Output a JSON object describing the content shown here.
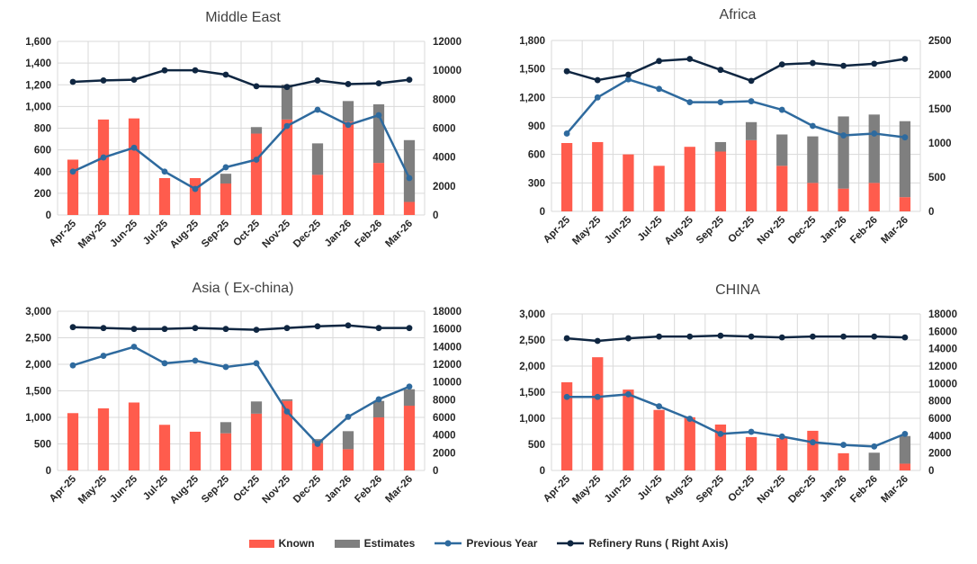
{
  "colors": {
    "known": "#FF5C4D",
    "estimates": "#7F7F7F",
    "previous_year": "#2E6A9E",
    "refinery_runs": "#0F2641"
  },
  "legend": {
    "known": "Known",
    "estimates": "Estimates",
    "previous_year": "Previous Year",
    "refinery_runs": "Refinery Runs ( Right Axis)"
  },
  "chart_data": [
    {
      "type": "bar",
      "title": "Middle East",
      "categories": [
        "Apr-25",
        "May-25",
        "Jun-25",
        "Jul-25",
        "Aug-25",
        "Sep-25",
        "Oct-25",
        "Nov-25",
        "Dec-25",
        "Jan-26",
        "Feb-26",
        "Mar-26"
      ],
      "ylim": [
        0,
        1600
      ],
      "yticks": [
        0,
        200,
        400,
        600,
        800,
        1000,
        1200,
        1400,
        1600
      ],
      "yticklabels": [
        "0",
        "200",
        "400",
        "600",
        "800",
        "1,000",
        "1,200",
        "1,400",
        "1,600"
      ],
      "y2lim": [
        0,
        12000
      ],
      "y2ticks": [
        0,
        2000,
        4000,
        6000,
        8000,
        10000,
        12000
      ],
      "y2ticklabels": [
        "0",
        "2000",
        "4000",
        "6000",
        "8000",
        "10000",
        "12000"
      ],
      "series": [
        {
          "name": "Known",
          "kind": "bar",
          "values": [
            510,
            880,
            890,
            340,
            340,
            290,
            750,
            880,
            370,
            860,
            480,
            120
          ]
        },
        {
          "name": "Estimates",
          "kind": "bar",
          "values": [
            0,
            0,
            0,
            0,
            0,
            90,
            60,
            320,
            290,
            190,
            540,
            570
          ]
        },
        {
          "name": "Previous Year",
          "kind": "line",
          "axis": "left",
          "values": [
            400,
            530,
            620,
            400,
            240,
            440,
            510,
            820,
            970,
            830,
            920,
            340
          ]
        },
        {
          "name": "Refinery Runs ( Right Axis)",
          "kind": "line",
          "axis": "right",
          "values": [
            9200,
            9300,
            9350,
            10000,
            10000,
            9700,
            8900,
            8850,
            9300,
            9050,
            9100,
            9350
          ]
        }
      ]
    },
    {
      "type": "bar",
      "title": "Africa",
      "categories": [
        "Apr-25",
        "May-25",
        "Jun-25",
        "Jul-25",
        "Aug-25",
        "Sep-25",
        "Oct-25",
        "Nov-25",
        "Dec-25",
        "Jan-26",
        "Feb-26",
        "Mar-26"
      ],
      "ylim": [
        0,
        1800
      ],
      "yticks": [
        0,
        300,
        600,
        900,
        1200,
        1500,
        1800
      ],
      "yticklabels": [
        "0",
        "300",
        "600",
        "900",
        "1,200",
        "1,500",
        "1,800"
      ],
      "y2lim": [
        0,
        2500
      ],
      "y2ticks": [
        0,
        500,
        1000,
        1500,
        2000,
        2500
      ],
      "y2ticklabels": [
        "0",
        "500",
        "1000",
        "1500",
        "2000",
        "2500"
      ],
      "series": [
        {
          "name": "Known",
          "kind": "bar",
          "values": [
            720,
            730,
            600,
            480,
            680,
            630,
            750,
            480,
            300,
            240,
            300,
            150
          ]
        },
        {
          "name": "Estimates",
          "kind": "bar",
          "values": [
            0,
            0,
            0,
            0,
            0,
            100,
            190,
            330,
            490,
            760,
            720,
            800
          ]
        },
        {
          "name": "Previous Year",
          "kind": "line",
          "axis": "left",
          "values": [
            820,
            1200,
            1390,
            1290,
            1150,
            1150,
            1160,
            1070,
            900,
            800,
            820,
            780
          ]
        },
        {
          "name": "Refinery Runs ( Right Axis)",
          "kind": "line",
          "axis": "right",
          "values": [
            2050,
            1920,
            2000,
            2200,
            2230,
            2070,
            1910,
            2150,
            2170,
            2130,
            2160,
            2230
          ]
        }
      ]
    },
    {
      "type": "bar",
      "title": "Asia ( Ex-china)",
      "categories": [
        "Apr-25",
        "May-25",
        "Jun-25",
        "Jul-25",
        "Aug-25",
        "Sep-25",
        "Oct-25",
        "Nov-25",
        "Dec-25",
        "Jan-26",
        "Feb-26",
        "Mar-26"
      ],
      "ylim": [
        0,
        3000
      ],
      "yticks": [
        0,
        500,
        1000,
        1500,
        2000,
        2500,
        3000
      ],
      "yticklabels": [
        "0",
        "500",
        "1,000",
        "1,500",
        "2,000",
        "2,500",
        "3,000"
      ],
      "y2lim": [
        0,
        18000
      ],
      "y2ticks": [
        0,
        2000,
        4000,
        6000,
        8000,
        10000,
        12000,
        14000,
        16000,
        18000
      ],
      "y2ticklabels": [
        "0",
        "2000",
        "4000",
        "6000",
        "8000",
        "10000",
        "12000",
        "14000",
        "16000",
        "18000"
      ],
      "series": [
        {
          "name": "Known",
          "kind": "bar",
          "values": [
            1080,
            1170,
            1280,
            860,
            730,
            700,
            1070,
            1310,
            510,
            400,
            1000,
            1220
          ]
        },
        {
          "name": "Estimates",
          "kind": "bar",
          "values": [
            0,
            0,
            0,
            0,
            0,
            210,
            230,
            30,
            80,
            340,
            310,
            310
          ]
        },
        {
          "name": "Previous Year",
          "kind": "line",
          "axis": "left",
          "values": [
            1980,
            2160,
            2330,
            2020,
            2070,
            1950,
            2020,
            1110,
            500,
            1010,
            1340,
            1580
          ]
        },
        {
          "name": "Refinery Runs ( Right Axis)",
          "kind": "line",
          "axis": "right",
          "values": [
            16200,
            16100,
            16000,
            16000,
            16100,
            16000,
            15900,
            16100,
            16300,
            16400,
            16100,
            16100
          ]
        }
      ]
    },
    {
      "type": "bar",
      "title": "CHINA",
      "categories": [
        "Apr-25",
        "May-25",
        "Jun-25",
        "Jul-25",
        "Aug-25",
        "Sep-25",
        "Oct-25",
        "Nov-25",
        "Dec-25",
        "Jan-26",
        "Feb-26",
        "Mar-26"
      ],
      "ylim": [
        0,
        3000
      ],
      "yticks": [
        0,
        500,
        1000,
        1500,
        2000,
        2500,
        3000
      ],
      "yticklabels": [
        "0",
        "500",
        "1,000",
        "1,500",
        "2,000",
        "2,500",
        "3,000"
      ],
      "y2lim": [
        0,
        18000
      ],
      "y2ticks": [
        0,
        2000,
        4000,
        6000,
        8000,
        10000,
        12000,
        14000,
        16000,
        18000
      ],
      "y2ticklabels": [
        "0",
        "2000",
        "4000",
        "6000",
        "8000",
        "10000",
        "12000",
        "14000",
        "16000",
        "18000"
      ],
      "series": [
        {
          "name": "Known",
          "kind": "bar",
          "values": [
            1690,
            2170,
            1550,
            1160,
            1020,
            880,
            640,
            620,
            760,
            330,
            0,
            130
          ]
        },
        {
          "name": "Estimates",
          "kind": "bar",
          "values": [
            0,
            0,
            0,
            0,
            0,
            0,
            0,
            0,
            0,
            0,
            340,
            530
          ]
        },
        {
          "name": "Previous Year",
          "kind": "line",
          "axis": "left",
          "values": [
            1410,
            1410,
            1460,
            1230,
            990,
            700,
            740,
            650,
            540,
            490,
            460,
            700
          ]
        },
        {
          "name": "Refinery Runs ( Right Axis)",
          "kind": "line",
          "axis": "right",
          "values": [
            15200,
            14900,
            15200,
            15400,
            15400,
            15500,
            15400,
            15300,
            15400,
            15400,
            15400,
            15300
          ]
        }
      ]
    }
  ]
}
